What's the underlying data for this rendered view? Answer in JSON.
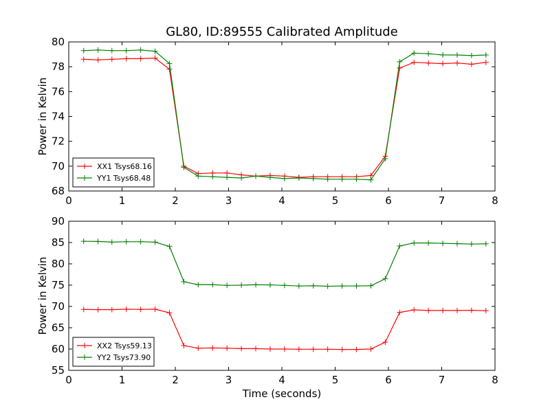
{
  "title": "GL80, ID:89555 Calibrated Amplitude",
  "colors": {
    "red": "#ff0000",
    "green": "#007f00"
  },
  "chart_data": [
    {
      "type": "line",
      "xlim": [
        0,
        8
      ],
      "ylim": [
        68,
        80
      ],
      "xticks": [
        "0",
        "1",
        "2",
        "3",
        "4",
        "5",
        "6",
        "7",
        "8"
      ],
      "yticks": [
        "68",
        "70",
        "72",
        "74",
        "76",
        "78",
        "80"
      ],
      "xlabel": "",
      "ylabel": "Power in Kelvin",
      "legend_position": "lower-left",
      "x": [
        0.28,
        0.55,
        0.81,
        1.08,
        1.35,
        1.62,
        1.89,
        2.16,
        2.43,
        2.7,
        2.97,
        3.24,
        3.51,
        3.78,
        4.05,
        4.32,
        4.59,
        4.86,
        5.13,
        5.4,
        5.67,
        5.94,
        6.21,
        6.48,
        6.75,
        7.02,
        7.29,
        7.56,
        7.83
      ],
      "series": [
        {
          "name": "XX1 Tsys68.16",
          "color": "#ff0000",
          "values": [
            78.6,
            78.55,
            78.6,
            78.65,
            78.65,
            78.7,
            77.8,
            70.0,
            69.4,
            69.45,
            69.45,
            69.3,
            69.2,
            69.25,
            69.2,
            69.1,
            69.15,
            69.15,
            69.15,
            69.15,
            69.25,
            70.8,
            77.9,
            78.35,
            78.3,
            78.25,
            78.3,
            78.2,
            78.35
          ]
        },
        {
          "name": "YY1 Tsys68.48",
          "color": "#007f00",
          "values": [
            79.3,
            79.35,
            79.3,
            79.3,
            79.35,
            79.25,
            78.25,
            69.9,
            69.2,
            69.15,
            69.1,
            69.05,
            69.2,
            69.1,
            69.0,
            69.05,
            69.0,
            68.95,
            68.95,
            68.95,
            68.9,
            70.6,
            78.4,
            79.1,
            79.05,
            78.95,
            78.95,
            78.9,
            78.95
          ]
        }
      ]
    },
    {
      "type": "line",
      "xlim": [
        0,
        8
      ],
      "ylim": [
        55,
        90
      ],
      "xticks": [
        "0",
        "1",
        "2",
        "3",
        "4",
        "5",
        "6",
        "7",
        "8"
      ],
      "yticks": [
        "55",
        "60",
        "65",
        "70",
        "75",
        "80",
        "85",
        "90"
      ],
      "xlabel": "Time (seconds)",
      "ylabel": "Power in Kelvin",
      "legend_position": "lower-left",
      "x": [
        0.28,
        0.55,
        0.81,
        1.08,
        1.35,
        1.62,
        1.89,
        2.16,
        2.43,
        2.7,
        2.97,
        3.24,
        3.51,
        3.78,
        4.05,
        4.32,
        4.59,
        4.86,
        5.13,
        5.4,
        5.67,
        5.94,
        6.21,
        6.48,
        6.75,
        7.02,
        7.29,
        7.56,
        7.83
      ],
      "series": [
        {
          "name": "XX2 Tsys59.13",
          "color": "#ff0000",
          "values": [
            69.3,
            69.25,
            69.25,
            69.35,
            69.3,
            69.35,
            68.5,
            60.8,
            60.2,
            60.25,
            60.2,
            60.1,
            60.1,
            60.0,
            60.0,
            59.95,
            59.95,
            59.95,
            59.9,
            59.9,
            60.0,
            61.6,
            68.6,
            69.2,
            69.05,
            69.05,
            69.05,
            69.1,
            69.0
          ]
        },
        {
          "name": "YY2 Tsys73.90",
          "color": "#007f00",
          "values": [
            85.3,
            85.25,
            85.1,
            85.2,
            85.2,
            85.1,
            84.1,
            75.8,
            75.1,
            75.1,
            74.95,
            75.0,
            75.1,
            75.05,
            74.95,
            74.8,
            74.85,
            74.75,
            74.8,
            74.8,
            74.85,
            76.5,
            84.2,
            84.9,
            84.9,
            84.8,
            84.75,
            84.65,
            84.7
          ]
        }
      ]
    }
  ]
}
